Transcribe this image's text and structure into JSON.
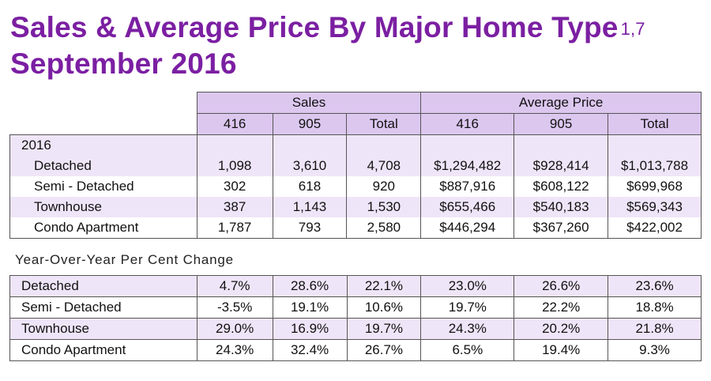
{
  "title": {
    "line1": "Sales & Average Price By Major Home Type",
    "superscript": "1,7",
    "line2": "September 2016"
  },
  "top_table": {
    "group_headers": [
      "Sales",
      "Average Price"
    ],
    "sub_headers": [
      "416",
      "905",
      "Total",
      "416",
      "905",
      "Total"
    ],
    "year_label": "2016",
    "rows": [
      {
        "label": "Detached",
        "values": [
          "1,098",
          "3,610",
          "4,708",
          "$1,294,482",
          "$928,414",
          "$1,013,788"
        ]
      },
      {
        "label": "Semi - Detached",
        "values": [
          "302",
          "618",
          "920",
          "$887,916",
          "$608,122",
          "$699,968"
        ]
      },
      {
        "label": "Townhouse",
        "values": [
          "387",
          "1,143",
          "1,530",
          "$655,466",
          "$540,183",
          "$569,343"
        ]
      },
      {
        "label": "Condo Apartment",
        "values": [
          "1,787",
          "793",
          "2,580",
          "$446,294",
          "$367,260",
          "$422,002"
        ]
      }
    ]
  },
  "yoy": {
    "heading": "Year-Over-Year Per Cent Change",
    "rows": [
      {
        "label": "Detached",
        "values": [
          "4.7%",
          "28.6%",
          "22.1%",
          "23.0%",
          "26.6%",
          "23.6%"
        ]
      },
      {
        "label": "Semi - Detached",
        "values": [
          "-3.5%",
          "19.1%",
          "10.6%",
          "19.7%",
          "22.2%",
          "18.8%"
        ]
      },
      {
        "label": "Townhouse",
        "values": [
          "29.0%",
          "16.9%",
          "19.7%",
          "24.3%",
          "20.2%",
          "21.8%"
        ]
      },
      {
        "label": "Condo Apartment",
        "values": [
          "24.3%",
          "32.4%",
          "26.7%",
          "6.5%",
          "19.4%",
          "9.3%"
        ]
      }
    ]
  },
  "colors": {
    "title": "#7b1fa2",
    "header_fill": "#dcc7ef",
    "row_shade": "#efe5f8"
  }
}
